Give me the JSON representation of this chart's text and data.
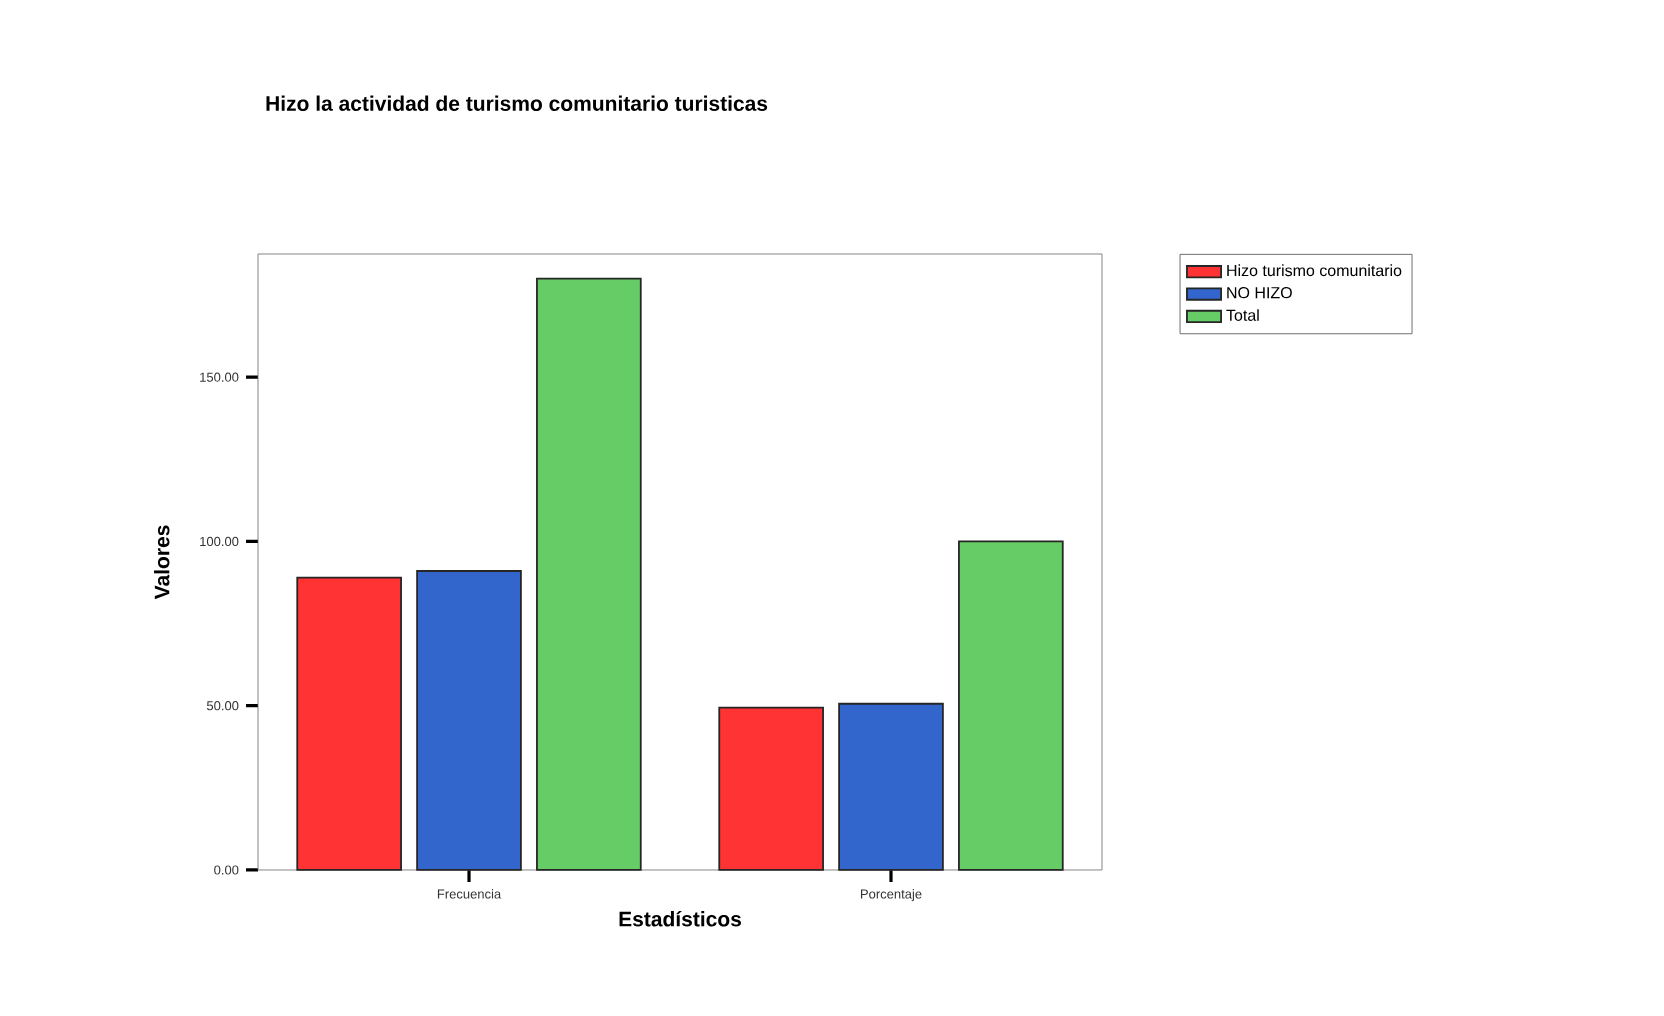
{
  "chart_data": {
    "type": "bar",
    "title": "Hizo la actividad de turismo comunitario turisticas",
    "xlabel": "Estadísticos",
    "ylabel": "Valores",
    "categories": [
      "Frecuencia",
      "Porcentaje"
    ],
    "series": [
      {
        "name": "Hizo turismo comunitario",
        "color": "#ff3333",
        "values": [
          89,
          49.4
        ]
      },
      {
        "name": "NO HIZO",
        "color": "#3366cc",
        "values": [
          91,
          50.6
        ]
      },
      {
        "name": "Total",
        "color": "#66cc66",
        "values": [
          180,
          100
        ]
      }
    ],
    "ylim": [
      0,
      187.5
    ],
    "yticks": [
      {
        "value": 0,
        "label": "0.00"
      },
      {
        "value": 50,
        "label": "50.00"
      },
      {
        "value": 100,
        "label": "100.00"
      },
      {
        "value": 150,
        "label": "150.00"
      }
    ],
    "legend": "top right"
  }
}
